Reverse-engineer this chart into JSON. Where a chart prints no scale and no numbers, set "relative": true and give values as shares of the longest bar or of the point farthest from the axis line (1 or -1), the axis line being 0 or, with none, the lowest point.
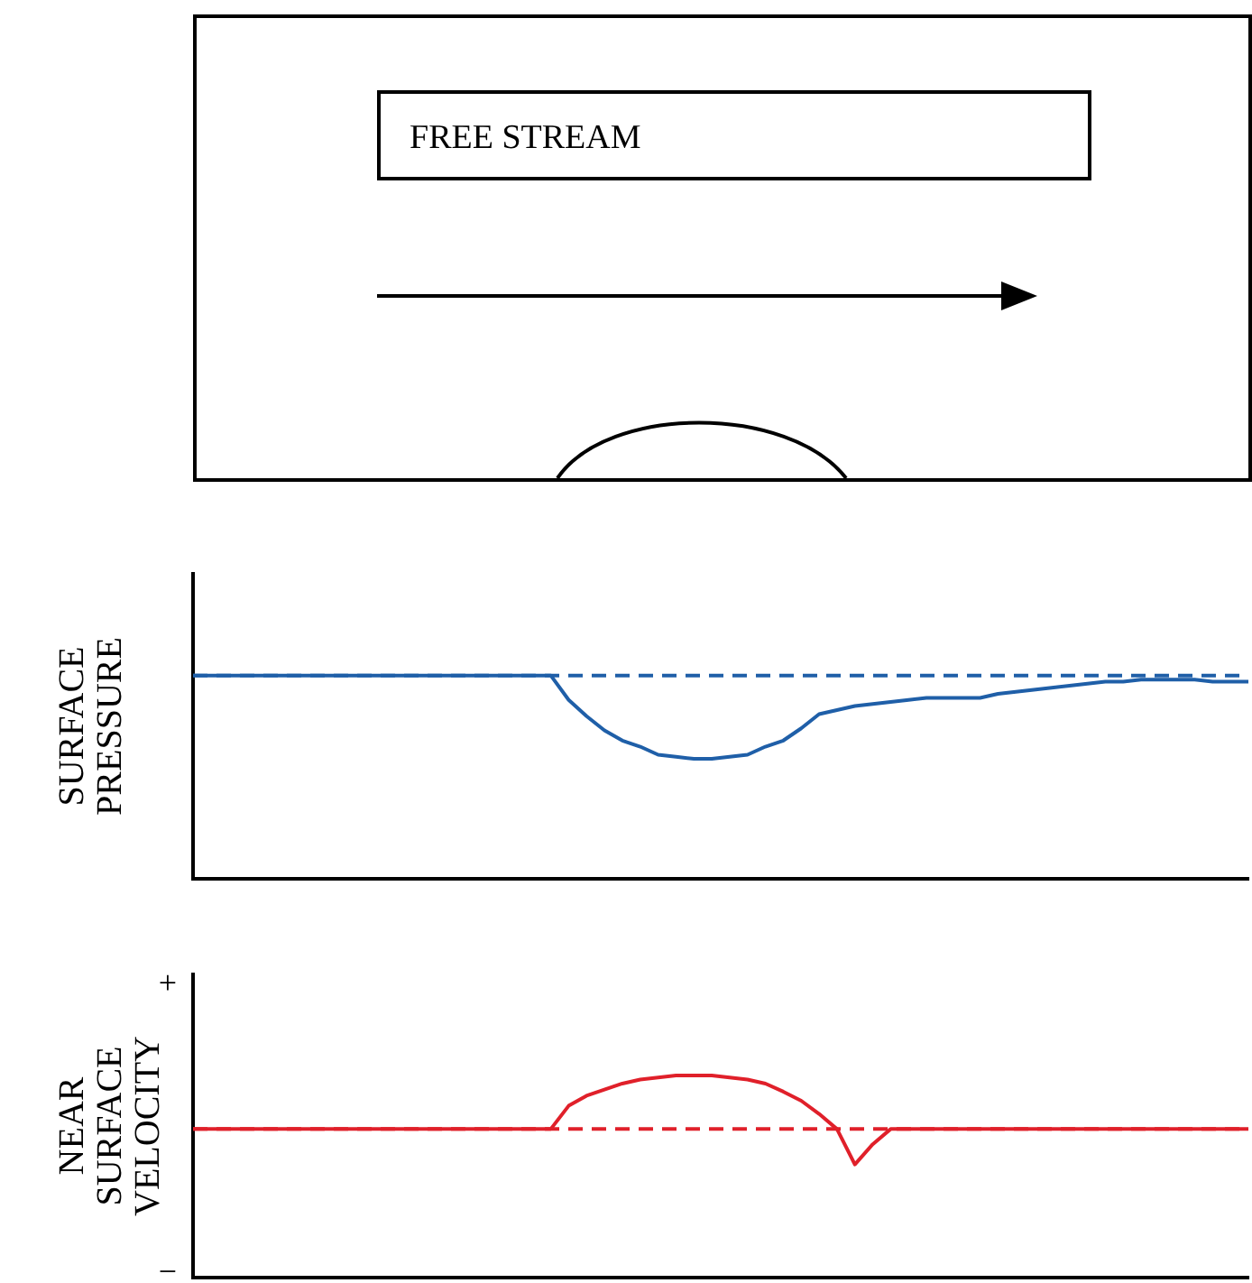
{
  "chart_data": [
    {
      "type": "other",
      "annotations": [
        "FREE STREAM"
      ]
    },
    {
      "type": "line",
      "ylabel": "SURFACE PRESSURE",
      "relative": true,
      "marker": "none",
      "categories": [
        null,
        null,
        null,
        null,
        null,
        null,
        null,
        null,
        null,
        null,
        null,
        null,
        null,
        null,
        null,
        null,
        null,
        null,
        null,
        null,
        null,
        null,
        null,
        null,
        null,
        null,
        null,
        null,
        null,
        null,
        null,
        null,
        null,
        null,
        null,
        null,
        null,
        null,
        null,
        null,
        null,
        null,
        null,
        null,
        null,
        null,
        null,
        null,
        null,
        null,
        null,
        null,
        null,
        null,
        null,
        null,
        null,
        null,
        null,
        null
      ],
      "series": [
        {
          "color": "#1f5fa8",
          "line_style": "solid",
          "values": [
            1,
            1,
            1,
            1,
            1,
            1,
            1,
            1,
            1,
            1,
            1,
            1,
            1,
            1,
            1,
            1,
            1,
            1,
            1,
            1,
            1,
            0.88,
            0.8,
            0.73,
            0.68,
            0.65,
            0.61,
            0.6,
            0.59,
            0.59,
            0.6,
            0.61,
            0.65,
            0.68,
            0.74,
            0.81,
            0.83,
            0.85,
            0.86,
            0.87,
            0.88,
            0.89,
            0.89,
            0.89,
            0.89,
            0.91,
            0.92,
            0.93,
            0.94,
            0.95,
            0.96,
            0.97,
            0.97,
            0.98,
            0.98,
            0.98,
            0.98,
            0.97,
            0.97,
            0.97
          ]
        }
      ],
      "ref_lines": [
        {
          "axis": "y",
          "value": 1,
          "color": "#1f5fa8",
          "line_style": "dashed"
        }
      ]
    },
    {
      "type": "line",
      "ylabel": "NEAR SURFACE VELOCITY",
      "relative": true,
      "marker": "none",
      "annotations": [
        "+",
        "−"
      ],
      "categories": [
        null,
        null,
        null,
        null,
        null,
        null,
        null,
        null,
        null,
        null,
        null,
        null,
        null,
        null,
        null,
        null,
        null,
        null,
        null,
        null,
        null,
        null,
        null,
        null,
        null,
        null,
        null,
        null,
        null,
        null,
        null,
        null,
        null,
        null,
        null,
        null,
        null,
        null,
        null,
        null,
        null,
        null,
        null,
        null,
        null,
        null,
        null,
        null,
        null,
        null,
        null,
        null,
        null,
        null,
        null,
        null,
        null,
        null,
        null,
        null
      ],
      "series": [
        {
          "color": "#e0202a",
          "line_style": "solid",
          "values": [
            0.735,
            0.735,
            0.735,
            0.735,
            0.735,
            0.735,
            0.735,
            0.735,
            0.735,
            0.735,
            0.735,
            0.735,
            0.735,
            0.735,
            0.735,
            0.735,
            0.735,
            0.735,
            0.735,
            0.735,
            0.735,
            0.85,
            0.9,
            0.93,
            0.96,
            0.98,
            0.99,
            1,
            1,
            1,
            0.99,
            0.98,
            0.96,
            0.92,
            0.875,
            0.81,
            0.735,
            0.56,
            0.66,
            0.735,
            0.735,
            0.735,
            0.735,
            0.735,
            0.735,
            0.735,
            0.735,
            0.735,
            0.735,
            0.735,
            0.735,
            0.735,
            0.735,
            0.735,
            0.735,
            0.735,
            0.735,
            0.735,
            0.735,
            0.735
          ]
        }
      ],
      "ref_lines": [
        {
          "axis": "y",
          "value": 0.735,
          "color": "#e0202a",
          "line_style": "dashed"
        }
      ]
    }
  ]
}
